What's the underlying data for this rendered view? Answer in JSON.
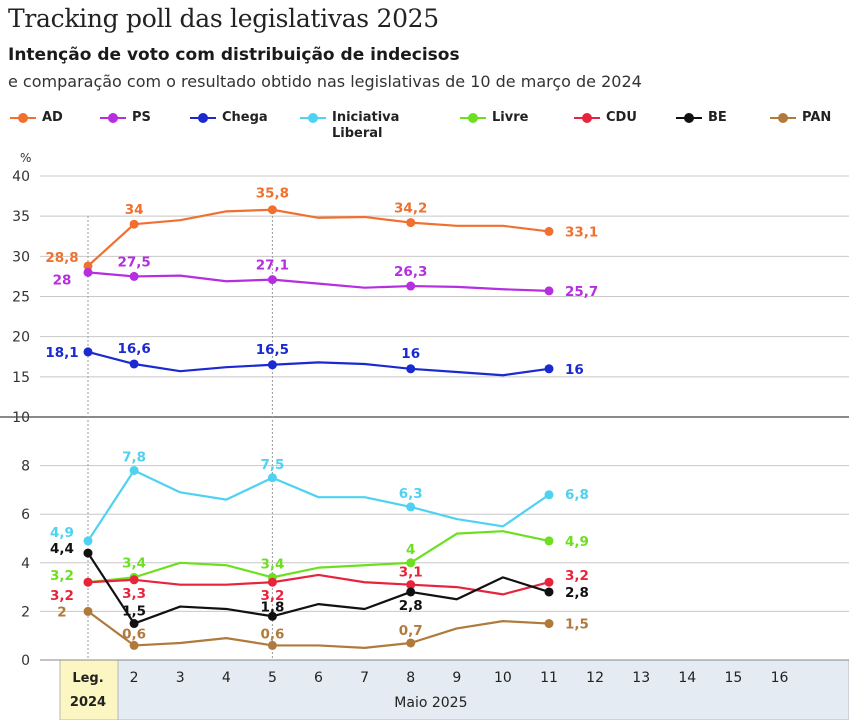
{
  "header": {
    "title": "Tracking poll das legislativas 2025",
    "subtitle": "Intenção de voto com distribuição de indecisos",
    "subtitle2": "e comparação com o resultado obtido nas legislativas de 10 de março de 2024"
  },
  "chart_data": {
    "type": "line",
    "ylabel": "%",
    "upper_panel": {
      "ylim": [
        10,
        40
      ],
      "ticks": [
        10,
        15,
        20,
        25,
        30,
        35,
        40
      ]
    },
    "lower_panel": {
      "ylim": [
        0,
        10
      ],
      "ticks": [
        0,
        2,
        4,
        6,
        8
      ]
    },
    "x_categories": [
      "Leg. 2024",
      "2",
      "3",
      "4",
      "5",
      "6",
      "7",
      "8",
      "9",
      "10",
      "11",
      "12",
      "13",
      "14",
      "15",
      "16"
    ],
    "x_first_label": [
      "Leg.",
      "2024"
    ],
    "x_group_label": "Maio 2025",
    "grid": true,
    "legend_position": "top",
    "series": [
      {
        "name": "AD",
        "color": "#f07030",
        "panel": "upper",
        "values": [
          28.8,
          34.0,
          34.5,
          35.6,
          35.8,
          34.8,
          34.9,
          34.2,
          33.8,
          33.8,
          33.1
        ],
        "labels": [
          {
            "i": 0,
            "text": "28,8"
          },
          {
            "i": 1,
            "text": "34"
          },
          {
            "i": 4,
            "text": "35,8"
          },
          {
            "i": 7,
            "text": "34,2"
          },
          {
            "i": 10,
            "text": "33,1"
          }
        ]
      },
      {
        "name": "PS",
        "color": "#b52ee0",
        "panel": "upper",
        "values": [
          28.0,
          27.5,
          27.6,
          26.9,
          27.1,
          26.6,
          26.1,
          26.3,
          26.2,
          25.9,
          25.7
        ],
        "labels": [
          {
            "i": 0,
            "text": "28"
          },
          {
            "i": 1,
            "text": "27,5"
          },
          {
            "i": 4,
            "text": "27,1"
          },
          {
            "i": 7,
            "text": "26,3"
          },
          {
            "i": 10,
            "text": "25,7"
          }
        ]
      },
      {
        "name": "Chega",
        "color": "#1a2ad0",
        "panel": "upper",
        "values": [
          18.1,
          16.6,
          15.7,
          16.2,
          16.5,
          16.8,
          16.6,
          16.0,
          15.6,
          15.2,
          16.0
        ],
        "labels": [
          {
            "i": 0,
            "text": "18,1"
          },
          {
            "i": 1,
            "text": "16,6"
          },
          {
            "i": 4,
            "text": "16,5"
          },
          {
            "i": 7,
            "text": "16"
          },
          {
            "i": 10,
            "text": "16"
          }
        ]
      },
      {
        "name": "Iniciativa Liberal",
        "legend_lines": [
          "Iniciativa",
          "Liberal"
        ],
        "color": "#4fd2f2",
        "panel": "lower",
        "values": [
          4.9,
          7.8,
          6.9,
          6.6,
          7.5,
          6.7,
          6.7,
          6.3,
          5.8,
          5.5,
          6.8
        ],
        "labels": [
          {
            "i": 0,
            "text": "4,9"
          },
          {
            "i": 1,
            "text": "7,8"
          },
          {
            "i": 4,
            "text": "7,5"
          },
          {
            "i": 7,
            "text": "6,3"
          },
          {
            "i": 10,
            "text": "6,8"
          }
        ]
      },
      {
        "name": "Livre",
        "color": "#6ce020",
        "panel": "lower",
        "values": [
          3.2,
          3.4,
          4.0,
          3.9,
          3.4,
          3.8,
          3.9,
          4.0,
          5.2,
          5.3,
          4.9
        ],
        "labels": [
          {
            "i": 0,
            "text": "3,2"
          },
          {
            "i": 1,
            "text": "3,4"
          },
          {
            "i": 4,
            "text": "3,4"
          },
          {
            "i": 7,
            "text": "4"
          },
          {
            "i": 10,
            "text": "4,9"
          }
        ]
      },
      {
        "name": "CDU",
        "color": "#e8243c",
        "panel": "lower",
        "values": [
          3.2,
          3.3,
          3.1,
          3.1,
          3.2,
          3.5,
          3.2,
          3.1,
          3.0,
          2.7,
          3.2
        ],
        "labels": [
          {
            "i": 0,
            "text": "3,2"
          },
          {
            "i": 1,
            "text": "3,3"
          },
          {
            "i": 4,
            "text": "3,2"
          },
          {
            "i": 7,
            "text": "3,1"
          },
          {
            "i": 10,
            "text": "3,2"
          }
        ]
      },
      {
        "name": "BE",
        "color": "#111111",
        "panel": "lower",
        "values": [
          4.4,
          1.5,
          2.2,
          2.1,
          1.8,
          2.3,
          2.1,
          2.8,
          2.5,
          3.4,
          2.8
        ],
        "labels": [
          {
            "i": 0,
            "text": "4,4"
          },
          {
            "i": 1,
            "text": "1,5"
          },
          {
            "i": 4,
            "text": "1,8"
          },
          {
            "i": 7,
            "text": "2,8"
          },
          {
            "i": 10,
            "text": "2,8"
          }
        ]
      },
      {
        "name": "PAN",
        "color": "#b07a3c",
        "panel": "lower",
        "values": [
          2.0,
          0.6,
          0.7,
          0.9,
          0.6,
          0.6,
          0.5,
          0.7,
          1.3,
          1.6,
          1.5
        ],
        "labels": [
          {
            "i": 0,
            "text": "2"
          },
          {
            "i": 1,
            "text": "0,6"
          },
          {
            "i": 4,
            "text": "0,6"
          },
          {
            "i": 7,
            "text": "0,7"
          },
          {
            "i": 10,
            "text": "1,5"
          }
        ]
      }
    ]
  }
}
